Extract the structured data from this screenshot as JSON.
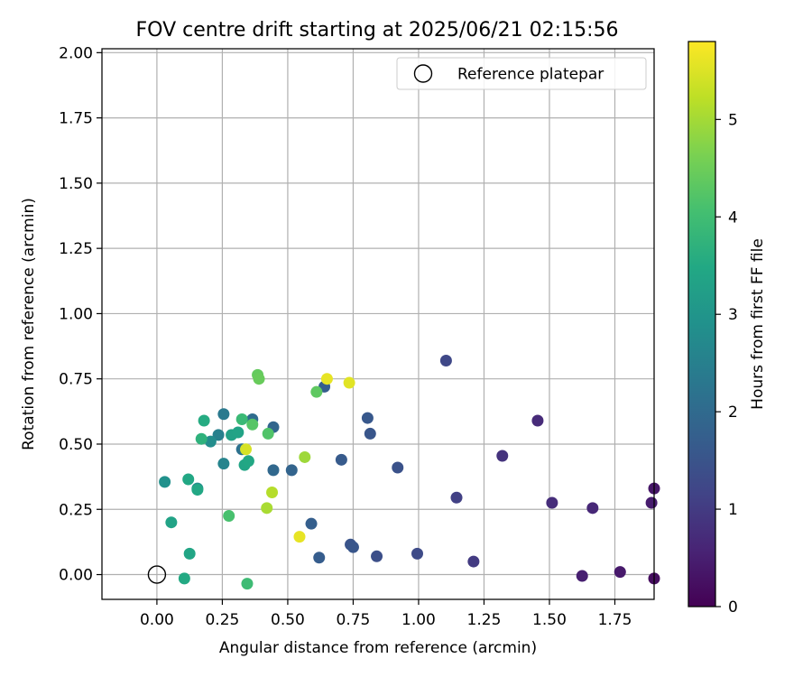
{
  "chart_data": {
    "type": "scatter",
    "title": "FOV centre drift starting at 2025/06/21 02:15:56",
    "xlabel": "Angular distance from reference (arcmin)",
    "ylabel": "Rotation from reference (arcmin)",
    "xlim": [
      -0.21,
      1.9
    ],
    "ylim": [
      -0.095,
      2.015
    ],
    "xticks": [
      0.0,
      0.25,
      0.5,
      0.75,
      1.0,
      1.25,
      1.5,
      1.75
    ],
    "xtick_labels": [
      "0.00",
      "0.25",
      "0.50",
      "0.75",
      "1.00",
      "1.25",
      "1.50",
      "1.75"
    ],
    "yticks": [
      0.0,
      0.25,
      0.5,
      0.75,
      1.0,
      1.25,
      1.5,
      1.75,
      2.0
    ],
    "ytick_labels": [
      "0.00",
      "0.25",
      "0.50",
      "0.75",
      "1.00",
      "1.25",
      "1.50",
      "1.75",
      "2.00"
    ],
    "grid": true,
    "legend": {
      "label": "Reference platepar",
      "position": "top-right"
    },
    "reference_point": {
      "x": 0.0,
      "y": 0.0
    },
    "colorbar": {
      "label": "Hours from first FF file",
      "colormap": "viridis",
      "range": [
        0,
        5.8
      ],
      "ticks": [
        0,
        1,
        2,
        3,
        4,
        5
      ],
      "tick_labels": [
        "0",
        "1",
        "2",
        "3",
        "4",
        "5"
      ]
    },
    "points": [
      {
        "x": 1.9,
        "y": 0.33,
        "c": 0.35
      },
      {
        "x": 1.89,
        "y": 0.275,
        "c": 0.45
      },
      {
        "x": 1.9,
        "y": -0.015,
        "c": 0.2
      },
      {
        "x": 1.77,
        "y": 0.01,
        "c": 0.4
      },
      {
        "x": 1.625,
        "y": -0.005,
        "c": 0.5
      },
      {
        "x": 1.665,
        "y": 0.255,
        "c": 0.65
      },
      {
        "x": 1.51,
        "y": 0.275,
        "c": 0.75
      },
      {
        "x": 1.455,
        "y": 0.59,
        "c": 0.7
      },
      {
        "x": 1.32,
        "y": 0.455,
        "c": 0.85
      },
      {
        "x": 1.21,
        "y": 0.05,
        "c": 1.0
      },
      {
        "x": 1.145,
        "y": 0.295,
        "c": 1.1
      },
      {
        "x": 1.105,
        "y": 0.82,
        "c": 1.25
      },
      {
        "x": 0.995,
        "y": 0.08,
        "c": 1.3
      },
      {
        "x": 0.92,
        "y": 0.41,
        "c": 1.45
      },
      {
        "x": 0.84,
        "y": 0.07,
        "c": 1.4
      },
      {
        "x": 0.815,
        "y": 0.54,
        "c": 1.55
      },
      {
        "x": 0.805,
        "y": 0.6,
        "c": 1.6
      },
      {
        "x": 0.74,
        "y": 0.115,
        "c": 1.5
      },
      {
        "x": 0.75,
        "y": 0.105,
        "c": 1.55
      },
      {
        "x": 0.705,
        "y": 0.44,
        "c": 1.65
      },
      {
        "x": 0.64,
        "y": 0.72,
        "c": 1.7
      },
      {
        "x": 0.62,
        "y": 0.065,
        "c": 1.7
      },
      {
        "x": 0.59,
        "y": 0.195,
        "c": 1.75
      },
      {
        "x": 0.515,
        "y": 0.4,
        "c": 1.85
      },
      {
        "x": 0.445,
        "y": 0.565,
        "c": 1.9
      },
      {
        "x": 0.445,
        "y": 0.4,
        "c": 1.95
      },
      {
        "x": 0.365,
        "y": 0.595,
        "c": 2.05
      },
      {
        "x": 0.325,
        "y": 0.48,
        "c": 2.15
      },
      {
        "x": 0.255,
        "y": 0.615,
        "c": 2.35
      },
      {
        "x": 0.235,
        "y": 0.535,
        "c": 2.5
      },
      {
        "x": 0.255,
        "y": 0.425,
        "c": 2.6
      },
      {
        "x": 0.205,
        "y": 0.51,
        "c": 2.8
      },
      {
        "x": 0.155,
        "y": 0.33,
        "c": 2.85
      },
      {
        "x": 0.03,
        "y": 0.355,
        "c": 2.9
      },
      {
        "x": 0.285,
        "y": 0.535,
        "c": 3.3
      },
      {
        "x": 0.31,
        "y": 0.545,
        "c": 3.35
      },
      {
        "x": 0.335,
        "y": 0.42,
        "c": 3.4
      },
      {
        "x": 0.35,
        "y": 0.435,
        "c": 3.45
      },
      {
        "x": 0.12,
        "y": 0.365,
        "c": 3.45
      },
      {
        "x": 0.155,
        "y": 0.325,
        "c": 3.45
      },
      {
        "x": 0.055,
        "y": 0.2,
        "c": 3.35
      },
      {
        "x": 0.125,
        "y": 0.08,
        "c": 3.4
      },
      {
        "x": 0.105,
        "y": -0.015,
        "c": 3.5
      },
      {
        "x": 0.18,
        "y": 0.59,
        "c": 3.55
      },
      {
        "x": 0.17,
        "y": 0.52,
        "c": 3.7
      },
      {
        "x": 0.325,
        "y": 0.595,
        "c": 3.9
      },
      {
        "x": 0.345,
        "y": -0.035,
        "c": 3.95
      },
      {
        "x": 0.275,
        "y": 0.225,
        "c": 4.1
      },
      {
        "x": 0.365,
        "y": 0.575,
        "c": 4.25
      },
      {
        "x": 0.425,
        "y": 0.54,
        "c": 4.2
      },
      {
        "x": 0.385,
        "y": 0.765,
        "c": 4.4
      },
      {
        "x": 0.39,
        "y": 0.75,
        "c": 4.45
      },
      {
        "x": 0.61,
        "y": 0.7,
        "c": 4.35
      },
      {
        "x": 0.565,
        "y": 0.45,
        "c": 4.95
      },
      {
        "x": 0.42,
        "y": 0.255,
        "c": 5.05
      },
      {
        "x": 0.44,
        "y": 0.315,
        "c": 5.15
      },
      {
        "x": 0.34,
        "y": 0.48,
        "c": 5.45
      },
      {
        "x": 0.545,
        "y": 0.145,
        "c": 5.6
      },
      {
        "x": 0.65,
        "y": 0.75,
        "c": 5.6
      },
      {
        "x": 0.735,
        "y": 0.735,
        "c": 5.55
      }
    ]
  }
}
